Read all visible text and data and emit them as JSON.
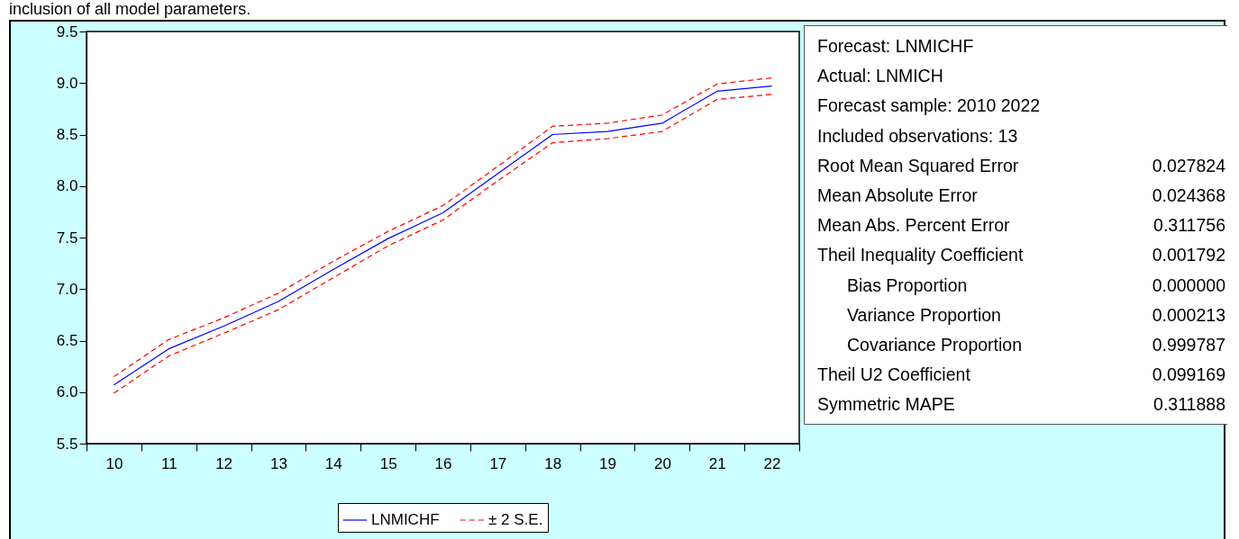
{
  "chart_data": {
    "type": "line",
    "categories": [
      "10",
      "11",
      "12",
      "13",
      "14",
      "15",
      "16",
      "17",
      "18",
      "19",
      "20",
      "21",
      "22"
    ],
    "series": [
      {
        "name": "LNMICHF",
        "color": "#0000ff",
        "line_style": "solid",
        "values": [
          6.07,
          6.42,
          6.64,
          6.88,
          7.19,
          7.49,
          7.74,
          8.12,
          8.5,
          8.53,
          8.61,
          8.92,
          8.97
        ]
      },
      {
        "name": "± 2 S.E.",
        "color": "#ff0000",
        "line_style": "dashed",
        "values": [
          6.15,
          6.51,
          6.72,
          6.96,
          7.27,
          7.56,
          7.81,
          8.19,
          8.58,
          8.61,
          8.69,
          8.99,
          9.05
        ]
      },
      {
        "color": "#ff0000",
        "line_style": "dashed",
        "values": [
          5.99,
          6.35,
          6.57,
          6.8,
          7.11,
          7.42,
          7.67,
          8.05,
          8.42,
          8.46,
          8.53,
          8.84,
          8.89
        ]
      }
    ],
    "ylim": [
      5.5,
      9.5
    ],
    "yticks": [
      5.5,
      {
        "value": 6,
        "label": "6.0"
      },
      6.5,
      {
        "value": 7,
        "label": "7.0"
      },
      7.5,
      {
        "value": 8,
        "label": "8.0"
      },
      8.5,
      {
        "value": 9,
        "label": "9.0"
      },
      9.5
    ],
    "legend": "bottom",
    "annotations": [
      "inclusion of all model parameters.",
      "Forecast: LNMICHF",
      "Actual: LNMICH",
      "Forecast sample: 2010 2022",
      "Included observations: 13",
      "Root Mean Squared Error 0.027824",
      "Mean Absolute Error 0.024368",
      "Mean Abs. Percent Error 0.311756",
      "Theil Inequality Coefficient 0.001792",
      "   Bias Proportion 0.000000",
      "   Variance Proportion 0.000213",
      "   Covariance Proportion 0.999787",
      "Theil U2 Coefficient 0.099169",
      "Symmetric MAPE 0.311888"
    ]
  }
}
